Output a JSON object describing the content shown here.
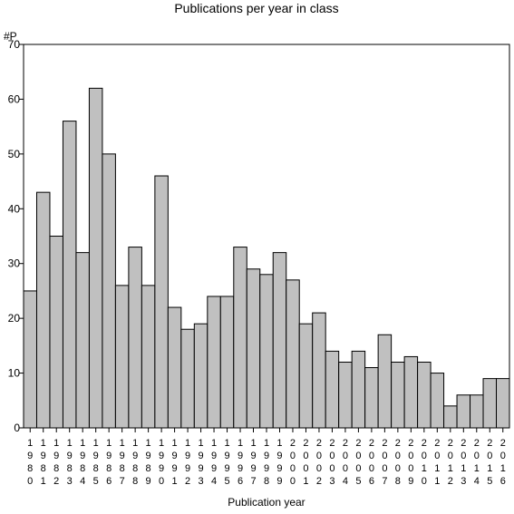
{
  "chart_data": {
    "type": "bar",
    "title": "Publications per year in class",
    "xlabel": "Publication year",
    "ylabel": "#P",
    "ylim": [
      0,
      70
    ],
    "yticks": [
      0,
      10,
      20,
      30,
      40,
      50,
      60,
      70
    ],
    "grid": false,
    "legend": "none",
    "categories": [
      "1980",
      "1981",
      "1982",
      "1983",
      "1984",
      "1985",
      "1986",
      "1987",
      "1988",
      "1989",
      "1990",
      "1991",
      "1992",
      "1993",
      "1994",
      "1995",
      "1996",
      "1997",
      "1998",
      "1999",
      "2000",
      "2001",
      "2002",
      "2003",
      "2004",
      "2005",
      "2006",
      "2007",
      "2008",
      "2009",
      "2010",
      "2011",
      "2012",
      "2013",
      "2014",
      "2015",
      "2016"
    ],
    "values": [
      25,
      43,
      35,
      56,
      32,
      62,
      50,
      26,
      33,
      26,
      46,
      22,
      18,
      19,
      24,
      24,
      33,
      29,
      28,
      32,
      27,
      19,
      21,
      14,
      12,
      14,
      11,
      17,
      12,
      13,
      12,
      10,
      4,
      6,
      6,
      9,
      9
    ],
    "bar_color": "#c0c0c0",
    "bar_stroke": "#000000"
  }
}
